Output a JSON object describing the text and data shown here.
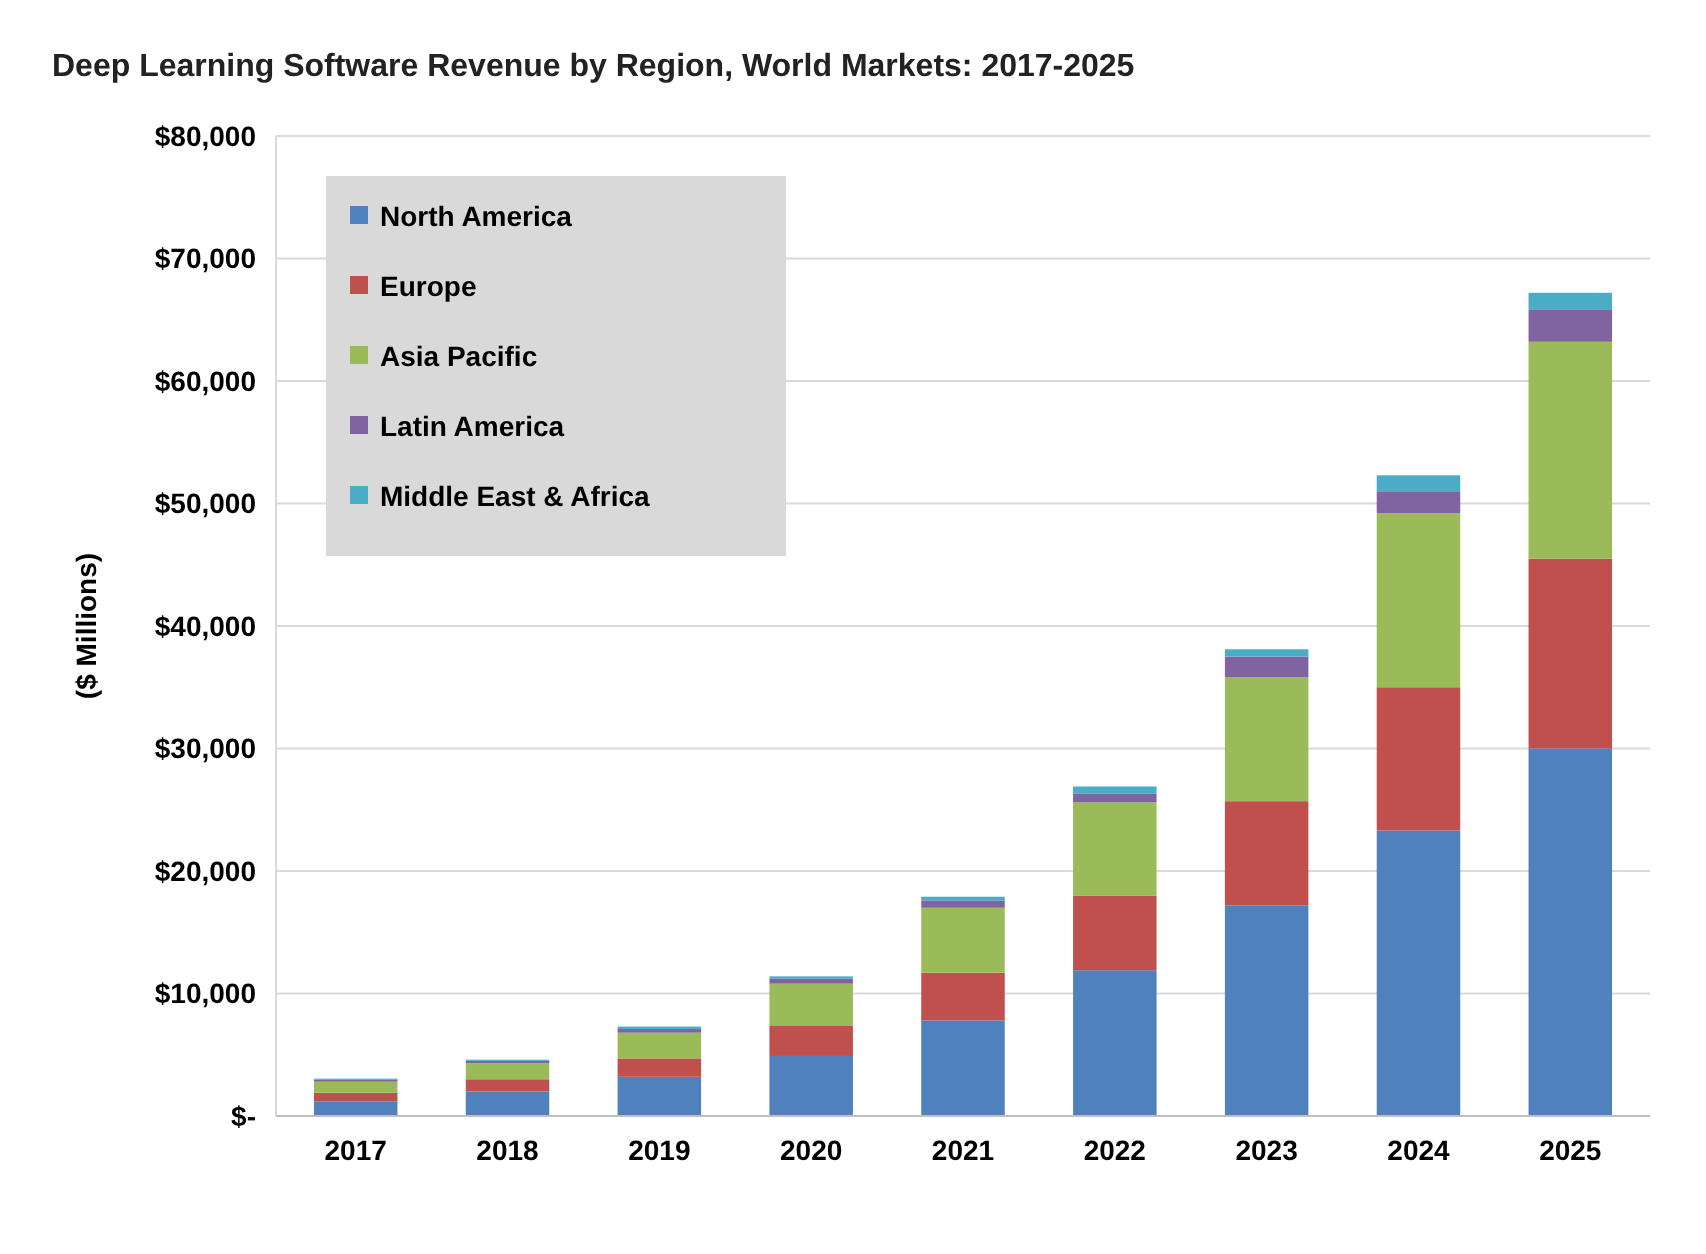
{
  "chart_data": {
    "type": "bar",
    "title": "Deep Learning Software Revenue by Region, World Markets: 2017-2025",
    "ylabel": "($ Millions)",
    "categories": [
      "2017",
      "2018",
      "2019",
      "2020",
      "2021",
      "2022",
      "2023",
      "2024",
      "2025"
    ],
    "stacked": true,
    "series": [
      {
        "name": "North America",
        "color": "#4f81bd",
        "values": [
          1200,
          2000,
          3200,
          4900,
          7800,
          11900,
          17200,
          23300,
          30000
        ]
      },
      {
        "name": "Europe",
        "color": "#c0504d",
        "values": [
          700,
          1000,
          1500,
          2500,
          3900,
          6100,
          8500,
          11700,
          15500
        ]
      },
      {
        "name": "Asia Pacific",
        "color": "#9bbb59",
        "values": [
          900,
          1300,
          2100,
          3400,
          5300,
          7600,
          10100,
          14200,
          17700
        ]
      },
      {
        "name": "Latin America",
        "color": "#8064a2",
        "values": [
          150,
          200,
          300,
          400,
          600,
          700,
          1700,
          1800,
          2600
        ]
      },
      {
        "name": "Middle East & Africa",
        "color": "#4bacc6",
        "values": [
          100,
          100,
          200,
          200,
          300,
          600,
          600,
          1300,
          1400
        ]
      }
    ],
    "ylim": [
      0,
      80000
    ],
    "yticks": [
      {
        "value": 0,
        "label": "$-"
      },
      {
        "value": 10000,
        "label": "$10,000"
      },
      {
        "value": 20000,
        "label": "$20,000"
      },
      {
        "value": 30000,
        "label": "$30,000"
      },
      {
        "value": 40000,
        "label": "$40,000"
      },
      {
        "value": 50000,
        "label": "$50,000"
      },
      {
        "value": 60000,
        "label": "$60,000"
      },
      {
        "value": 70000,
        "label": "$70,000"
      },
      {
        "value": 80000,
        "label": "$80,000"
      }
    ],
    "grid": "y",
    "legend": "top left"
  }
}
